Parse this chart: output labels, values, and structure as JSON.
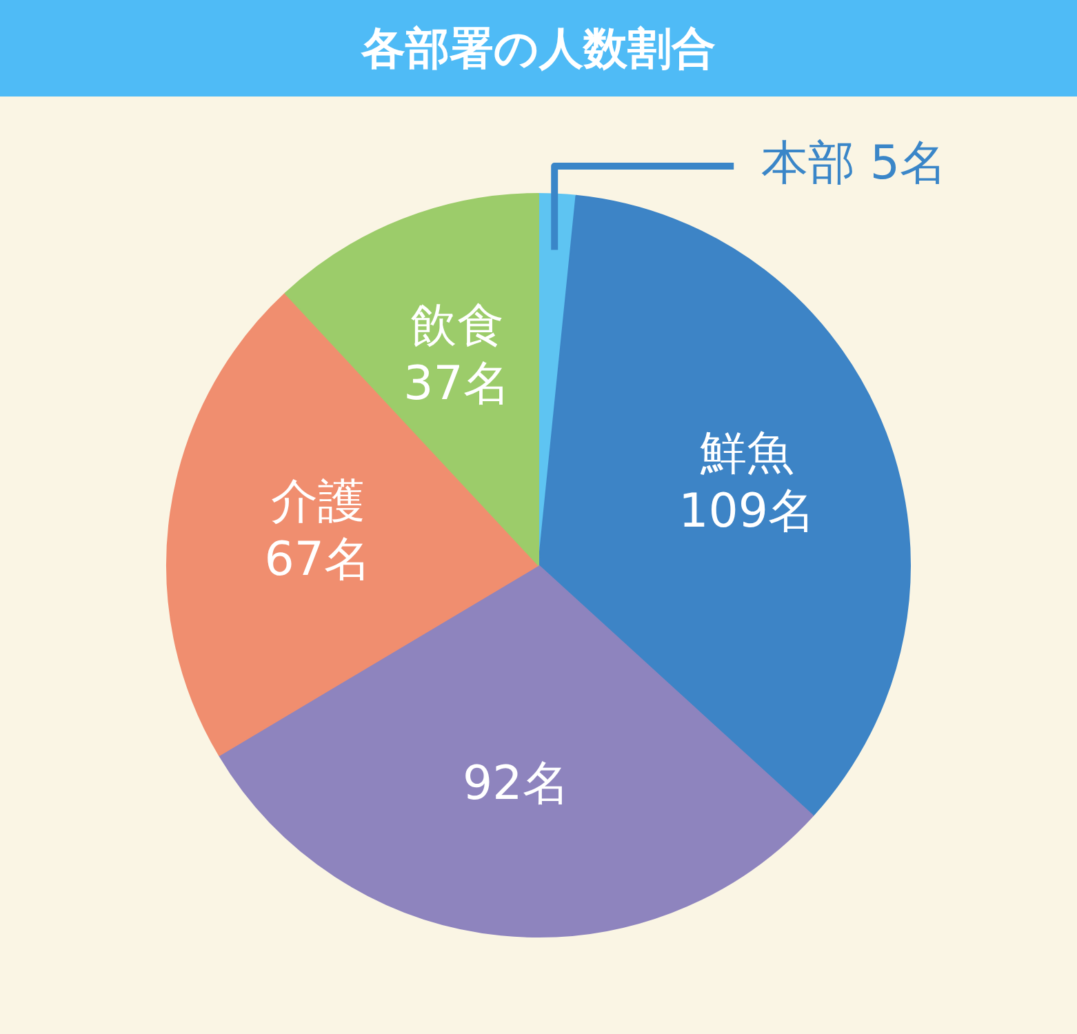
{
  "chart_data": {
    "type": "pie",
    "title": "各部署の人数割合",
    "categories": [
      "本部",
      "鮮魚",
      null,
      "介護",
      "飲食"
    ],
    "values": [
      5,
      109,
      92,
      67,
      37
    ],
    "colors": [
      "#5ec4f2",
      "#3d84c6",
      "#8e84be",
      "#f08e6f",
      "#9ccc6a"
    ],
    "value_labels": [
      "5名",
      "109名",
      "92名",
      "67名",
      "37名"
    ],
    "legend": false
  }
}
